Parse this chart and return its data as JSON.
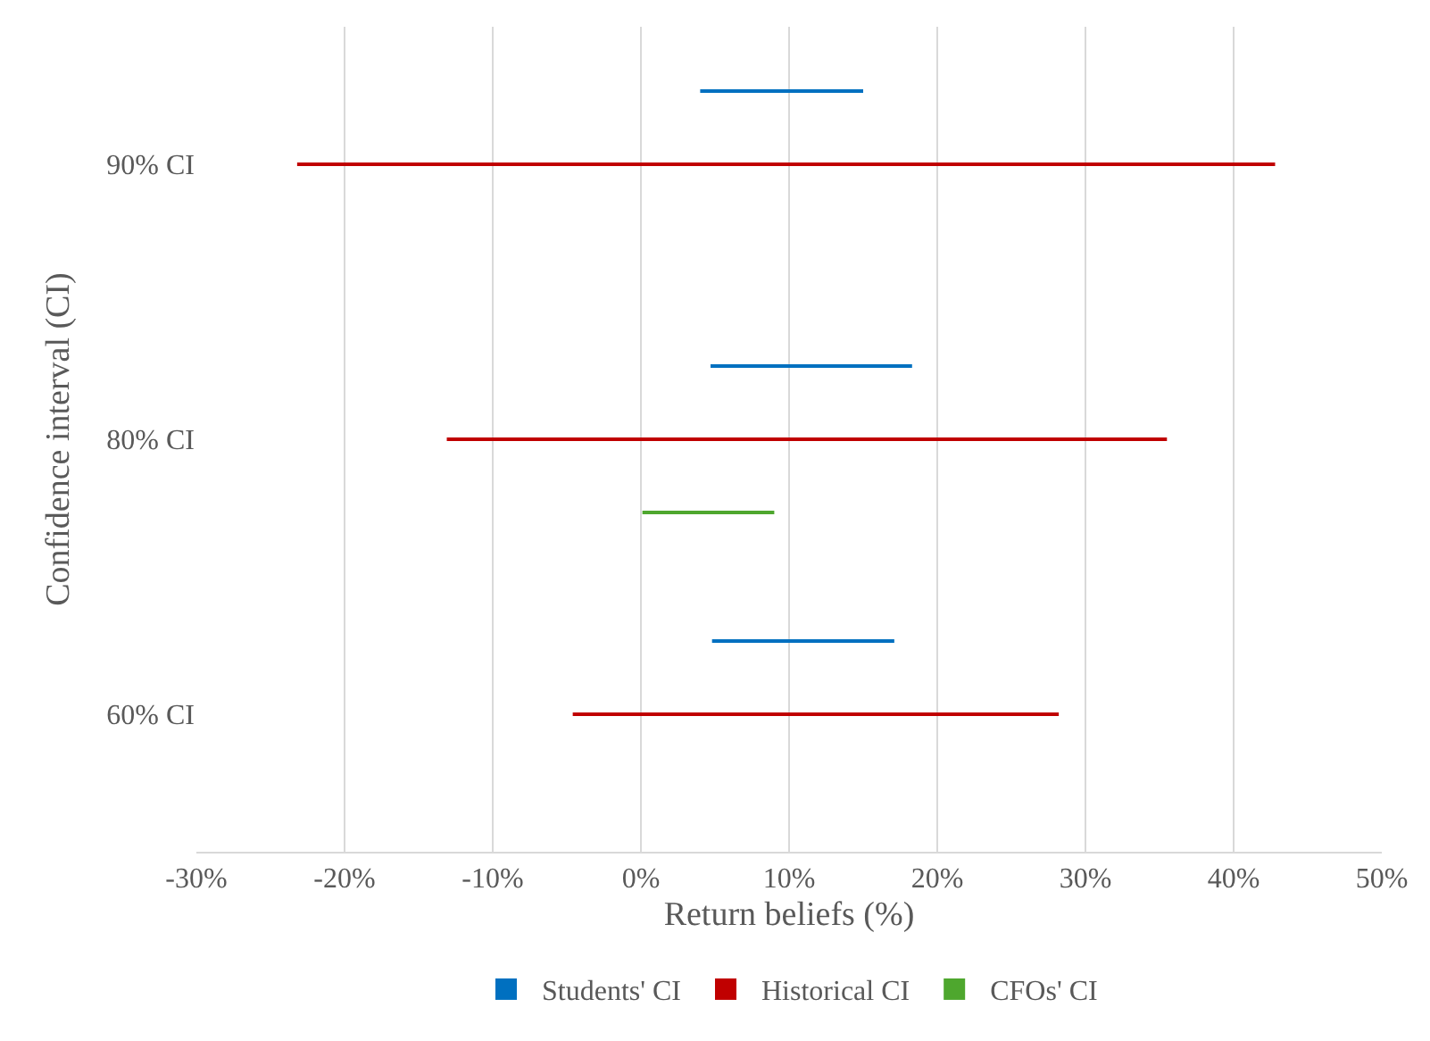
{
  "chart_data": {
    "type": "bar",
    "orientation": "horizontal",
    "xlabel": "Return beliefs (%)",
    "ylabel": "Confidence interval (CI)",
    "categories": [
      "90% CI",
      "80% CI",
      "60% CI"
    ],
    "series": [
      {
        "name": "Students' CI",
        "color": "#0070c0",
        "base": [
          4.0,
          4.7,
          4.8
        ],
        "values": [
          11.0,
          13.6,
          12.3
        ]
      },
      {
        "name": "Historical CI",
        "color": "#c00000",
        "base": [
          -23.2,
          -13.1,
          -4.6
        ],
        "values": [
          66.0,
          48.6,
          32.8
        ]
      },
      {
        "name": "CFOs' CI",
        "color": "#4ea72e",
        "base": [
          null,
          0.1,
          null
        ],
        "values": [
          null,
          8.9,
          null
        ]
      }
    ],
    "xlim": [
      -30,
      50
    ],
    "xticks": [
      {
        "value": -30,
        "label": "-30%"
      },
      {
        "value": -20,
        "label": "-20%"
      },
      {
        "value": -10,
        "label": "-10%"
      },
      {
        "value": 0,
        "label": "0%"
      },
      {
        "value": 10,
        "label": "10%"
      },
      {
        "value": 20,
        "label": "20%"
      },
      {
        "value": 30,
        "label": "30%"
      },
      {
        "value": 40,
        "label": "40%"
      },
      {
        "value": 50,
        "label": "50%"
      }
    ],
    "grid": "x",
    "legend": "bottom"
  }
}
